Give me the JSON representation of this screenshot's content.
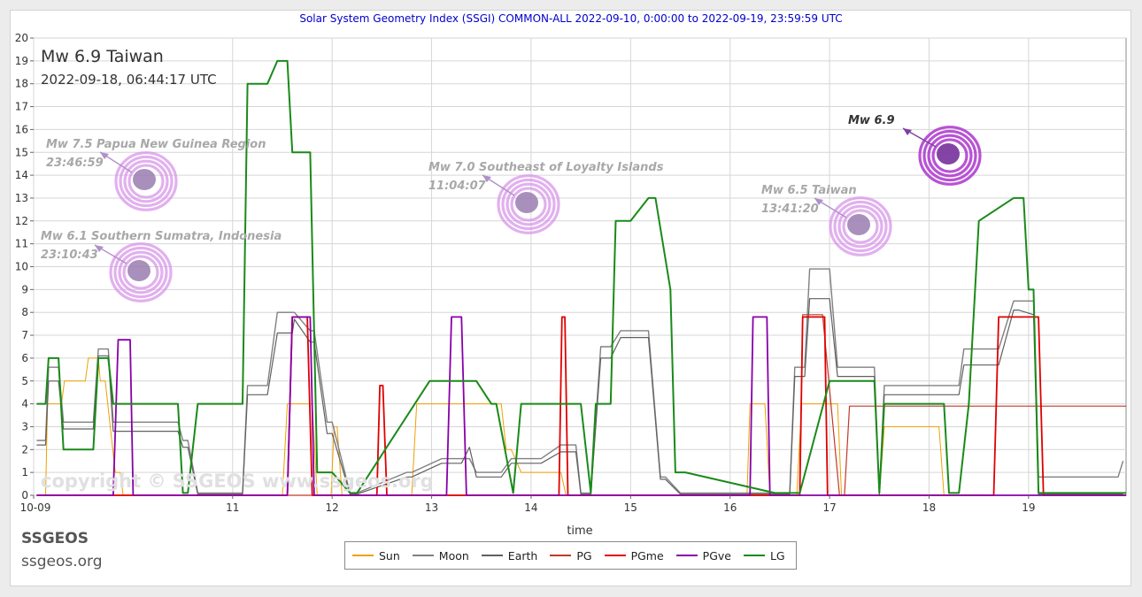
{
  "chart_data": {
    "type": "line",
    "title": "Solar System Geometry Index (SSGI) COMMON-ALL 2022-09-10,  0:00:00 to 2022-09-19, 23:59:59 UTC",
    "xlabel": "time",
    "ylabel": "",
    "xlim": [
      9.0,
      19.98
    ],
    "ylim": [
      0,
      20
    ],
    "grid": true,
    "legend_position": "bottom-center",
    "x_ticks": [
      {
        "v": 9.0,
        "label": "10-09"
      },
      {
        "v": 11,
        "label": "11"
      },
      {
        "v": 12,
        "label": "12"
      },
      {
        "v": 13,
        "label": "13"
      },
      {
        "v": 14,
        "label": "14"
      },
      {
        "v": 15,
        "label": "15"
      },
      {
        "v": 16,
        "label": "16"
      },
      {
        "v": 17,
        "label": "17"
      },
      {
        "v": 18,
        "label": "18"
      },
      {
        "v": 19,
        "label": "19"
      }
    ],
    "y_ticks": [
      "0",
      "1",
      "2",
      "3",
      "4",
      "5",
      "6",
      "7",
      "8",
      "9",
      "10",
      "11",
      "12",
      "13",
      "14",
      "15",
      "16",
      "17",
      "18",
      "19",
      "20"
    ],
    "series": [
      {
        "name": "Sun",
        "color": "#f0a000",
        "width": 1,
        "x": [
          9.03,
          9.12,
          9.14,
          9.28,
          9.31,
          9.52,
          9.55,
          9.65,
          9.67,
          9.72,
          9.82,
          9.87,
          9.9,
          9.93,
          9.95,
          10.0,
          10.0,
          11.5,
          11.55,
          11.8,
          11.85,
          11.99,
          12.02,
          12.05,
          12.1,
          12.8,
          12.85,
          13.7,
          13.75,
          13.8,
          13.9,
          13.95,
          14.3,
          14.35,
          14.45,
          14.5,
          15.5,
          16.17,
          16.2,
          16.35,
          16.4,
          16.67,
          16.72,
          17.08,
          17.12,
          17.5,
          17.55,
          18.1,
          18.15,
          18.3
        ],
        "y": [
          0,
          0,
          4,
          4,
          5,
          5,
          6,
          6,
          5,
          5,
          1,
          1,
          0,
          0,
          0,
          0,
          0,
          0,
          4,
          4,
          0,
          0,
          3,
          3,
          0,
          0,
          4,
          4,
          2,
          2,
          1,
          1,
          1,
          0,
          0,
          0,
          0,
          0,
          4,
          4,
          0,
          0,
          4,
          4,
          0,
          0,
          3,
          3,
          0,
          0
        ]
      },
      {
        "name": "Moon",
        "color": "#808080",
        "width": 1.4,
        "x": [
          9.03,
          9.12,
          9.15,
          9.25,
          9.3,
          9.6,
          9.65,
          9.75,
          9.8,
          10.15,
          10.2,
          10.45,
          10.5,
          10.55,
          10.65,
          11.1,
          11.15,
          11.35,
          11.45,
          11.6,
          11.62,
          11.78,
          11.82,
          11.95,
          12.0,
          12.18,
          12.25,
          12.75,
          12.8,
          13.1,
          13.2,
          13.3,
          13.38,
          13.45,
          13.5,
          13.7,
          13.8,
          14.1,
          14.3,
          14.45,
          14.5,
          14.6,
          14.7,
          14.8,
          14.9,
          15.0,
          15.18,
          15.3,
          15.35,
          15.5,
          15.55,
          16.45,
          16.5,
          16.6,
          16.65,
          16.75,
          16.8,
          17.0,
          17.08,
          17.4,
          17.45,
          17.5,
          17.55,
          18.1,
          18.15,
          18.3,
          18.35,
          18.5,
          18.55,
          18.7,
          18.85,
          18.9,
          19.05,
          19.1,
          19.2,
          19.45,
          19.5,
          19.9,
          19.95
        ],
        "y": [
          2.4,
          2.4,
          5.6,
          5.6,
          3.2,
          3.2,
          6.4,
          6.4,
          3.2,
          3.2,
          3.2,
          3.2,
          2.4,
          2.4,
          0.1,
          0.1,
          4.8,
          4.8,
          8,
          8,
          8,
          7.2,
          7.2,
          3.2,
          3.2,
          0.1,
          0.1,
          1,
          1,
          1.6,
          1.6,
          1.6,
          1.6,
          1,
          1,
          1,
          1.6,
          1.6,
          2.2,
          2.2,
          0.1,
          0.1,
          6.5,
          6.5,
          7.2,
          7.2,
          7.2,
          0.8,
          0.8,
          0.1,
          0.1,
          0.1,
          0.1,
          0.1,
          5.6,
          5.6,
          9.9,
          9.9,
          5.6,
          5.6,
          5.6,
          0.1,
          4.8,
          4.8,
          4.8,
          4.8,
          6.4,
          6.4,
          6.4,
          6.4,
          8.5,
          8.5,
          8.5,
          0.8,
          0.8,
          0.8,
          0.8,
          0.8,
          1.5
        ]
      },
      {
        "name": "Earth",
        "color": "#606060",
        "width": 1.2,
        "x": [
          9.03,
          9.12,
          9.15,
          9.25,
          9.3,
          9.6,
          9.65,
          9.75,
          9.8,
          10.15,
          10.2,
          10.45,
          10.5,
          10.55,
          10.65,
          11.1,
          11.15,
          11.35,
          11.45,
          11.6,
          11.62,
          11.78,
          11.82,
          11.95,
          12.0,
          12.18,
          12.25,
          12.75,
          12.8,
          13.1,
          13.2,
          13.3,
          13.38,
          13.45,
          13.5,
          13.7,
          13.8,
          14.1,
          14.3,
          14.45,
          14.5,
          14.6,
          14.7,
          14.8,
          14.9,
          15.0,
          15.18,
          15.3,
          15.35,
          15.5,
          15.55,
          16.45,
          16.5,
          16.6,
          16.65,
          16.75,
          16.8,
          17.0,
          17.08,
          17.4,
          17.45,
          17.5,
          17.55,
          18.1,
          18.15,
          18.3,
          18.35,
          18.5,
          18.55,
          18.7,
          18.85,
          18.9,
          19.05,
          19.1,
          19.2,
          19.45,
          19.5,
          19.9,
          19.95
        ],
        "y": [
          2.2,
          2.2,
          5,
          5,
          2.9,
          2.9,
          6.1,
          6.1,
          2.8,
          2.8,
          2.8,
          2.8,
          2.1,
          2.1,
          0.05,
          0.05,
          4.4,
          4.4,
          7.1,
          7.1,
          7.7,
          6.7,
          6.7,
          2.7,
          2.7,
          0.05,
          0.05,
          0.8,
          0.8,
          1.4,
          1.4,
          1.4,
          2.1,
          0.8,
          0.8,
          0.8,
          1.4,
          1.4,
          1.9,
          1.9,
          0.05,
          0.05,
          6,
          6,
          6.9,
          6.9,
          6.9,
          0.7,
          0.7,
          0.05,
          0.05,
          0.05,
          0.05,
          0.05,
          5.2,
          5.2,
          8.6,
          8.6,
          5.2,
          5.2,
          5.2,
          0.05,
          4.4,
          4.4,
          4.4,
          4.4,
          5.7,
          5.7,
          5.7,
          5.7,
          8.1,
          8.1,
          7.9,
          0.05,
          0.05,
          0.05,
          0.05,
          0.05,
          0.05
        ]
      },
      {
        "name": "PG",
        "color": "#c0392b",
        "width": 1.2,
        "x": [
          9.03,
          10.95,
          11.0,
          12.45,
          12.5,
          12.9,
          12.95,
          14.4,
          14.45,
          16.65,
          16.7,
          16.73,
          16.93,
          17.1,
          17.15,
          17.2,
          19.98
        ],
        "y": [
          0,
          0,
          0,
          0,
          0,
          0,
          0,
          0,
          0,
          0,
          0,
          7.9,
          7.9,
          0,
          0,
          3.9,
          3.9
        ]
      },
      {
        "name": "PGme",
        "color": "#e00000",
        "width": 1.8,
        "x": [
          9.03,
          11.55,
          11.6,
          11.75,
          11.8,
          12.45,
          12.48,
          12.51,
          12.55,
          14.28,
          14.31,
          14.34,
          14.37,
          16.65,
          16.7,
          16.73,
          16.95,
          16.98,
          17.1,
          17.15,
          18.65,
          18.7,
          18.85,
          18.9,
          19.1,
          19.15,
          19.98
        ],
        "y": [
          0,
          0,
          7.8,
          7.8,
          0,
          0,
          4.8,
          4.8,
          0,
          0,
          7.8,
          7.8,
          0,
          0,
          0,
          7.8,
          7.8,
          0,
          0,
          0,
          0,
          7.8,
          7.8,
          7.8,
          7.8,
          0,
          0
        ]
      },
      {
        "name": "PGve",
        "color": "#8800aa",
        "width": 1.8,
        "x": [
          9.03,
          9.8,
          9.85,
          9.97,
          10.0,
          11.55,
          11.6,
          11.78,
          11.82,
          13.15,
          13.2,
          13.3,
          13.35,
          16.2,
          16.23,
          16.37,
          16.4,
          17.65,
          19.98
        ],
        "y": [
          0,
          0,
          6.8,
          6.8,
          0,
          0,
          7.8,
          7.8,
          0,
          0,
          7.8,
          7.8,
          0,
          0,
          7.8,
          7.8,
          0,
          0,
          0
        ]
      },
      {
        "name": "LG",
        "color": "#1a8a1a",
        "width": 2,
        "x": [
          9.03,
          9.12,
          9.15,
          9.25,
          9.3,
          9.6,
          9.65,
          9.75,
          9.8,
          10.15,
          10.2,
          10.45,
          10.5,
          10.55,
          10.65,
          11.1,
          11.15,
          11.35,
          11.45,
          11.55,
          11.6,
          11.78,
          11.85,
          12.0,
          12.18,
          12.25,
          12.98,
          13.05,
          13.4,
          13.45,
          13.6,
          13.65,
          13.82,
          13.9,
          14.45,
          14.5,
          14.6,
          14.65,
          14.8,
          14.85,
          15.0,
          15.18,
          15.25,
          15.4,
          15.45,
          15.55,
          16.45,
          16.5,
          16.65,
          16.7,
          17.0,
          17.3,
          17.45,
          17.5,
          17.55,
          18.1,
          18.15,
          18.2,
          18.3,
          18.4,
          18.5,
          18.85,
          18.95,
          19.0,
          19.05,
          19.1,
          19.2,
          19.98
        ],
        "y": [
          4,
          4,
          6,
          6,
          2,
          2,
          6,
          6,
          4,
          4,
          4,
          4,
          0.1,
          0.1,
          4,
          4,
          18,
          18,
          19,
          19,
          15,
          15,
          1,
          1,
          0.1,
          0.1,
          5,
          5,
          5,
          5,
          4,
          4,
          0.1,
          4,
          4,
          4,
          0.1,
          4,
          4,
          12,
          12,
          13,
          13,
          9,
          1,
          1,
          0.1,
          0.1,
          0.1,
          0.1,
          5,
          5,
          5,
          0.1,
          4,
          4,
          4,
          0.1,
          0.1,
          4,
          12,
          13,
          13,
          9,
          9,
          0.1,
          0.1,
          0.1
        ]
      }
    ],
    "annotations": [
      {
        "name": "Mw 6.9 Taiwan",
        "time": "2022-09-18, 06:44:17 UTC"
      },
      {
        "label": "Mw 7.5 Papua New Guinea Region",
        "time": "23:46:59"
      },
      {
        "label": "Mw 6.1 Southern Sumatra, Indonesia",
        "time": "23:10:43"
      },
      {
        "label": "Mw 7.0 Southeast of Loyalty Islands",
        "time": "11:04:07"
      },
      {
        "label": "Mw 6.5 Taiwan",
        "time": "13:41:20"
      },
      {
        "label": "Mw 6.9"
      }
    ],
    "watermark": "copyright © SSGEOS  www.ssgeos.org"
  },
  "brand": {
    "name": "SSGEOS",
    "url": "ssgeos.org"
  }
}
